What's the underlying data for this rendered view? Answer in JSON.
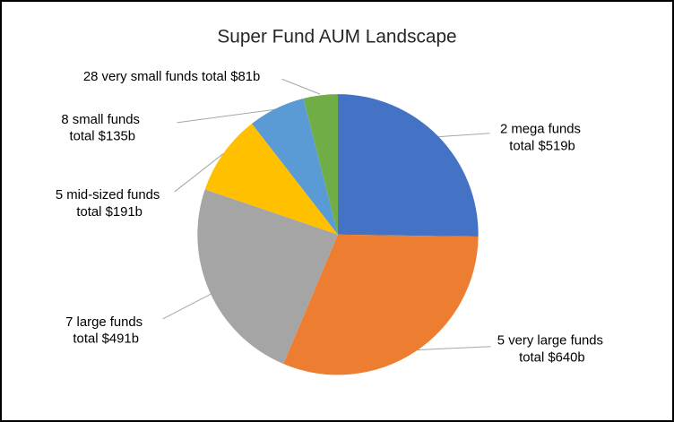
{
  "chart_data": {
    "type": "pie",
    "title": "Super Fund AUM Landscape",
    "value_unit": "$b",
    "direction": "clockwise",
    "start_angle_deg": 0,
    "legend": "none",
    "slices": [
      {
        "category": "2 mega funds",
        "value": 519,
        "color": "#4472C4",
        "label_lines": [
          "2 mega funds",
          "total $519b"
        ]
      },
      {
        "category": "5 very large funds",
        "value": 640,
        "color": "#ED7D31",
        "label_lines": [
          "5 very large funds",
          "total $640b"
        ]
      },
      {
        "category": "7 large funds",
        "value": 491,
        "color": "#A5A5A5",
        "label_lines": [
          "7 large funds",
          "total $491b"
        ]
      },
      {
        "category": "5 mid-sized funds",
        "value": 191,
        "color": "#FFC000",
        "label_lines": [
          "5 mid-sized funds",
          "total $191b"
        ]
      },
      {
        "category": "8 small funds",
        "value": 135,
        "color": "#5B9BD5",
        "label_lines": [
          "8 small funds",
          "total $135b"
        ]
      },
      {
        "category": "28 very small funds",
        "value": 81,
        "color": "#70AD47",
        "label_lines": [
          "28 very small funds total $81b"
        ]
      }
    ]
  }
}
